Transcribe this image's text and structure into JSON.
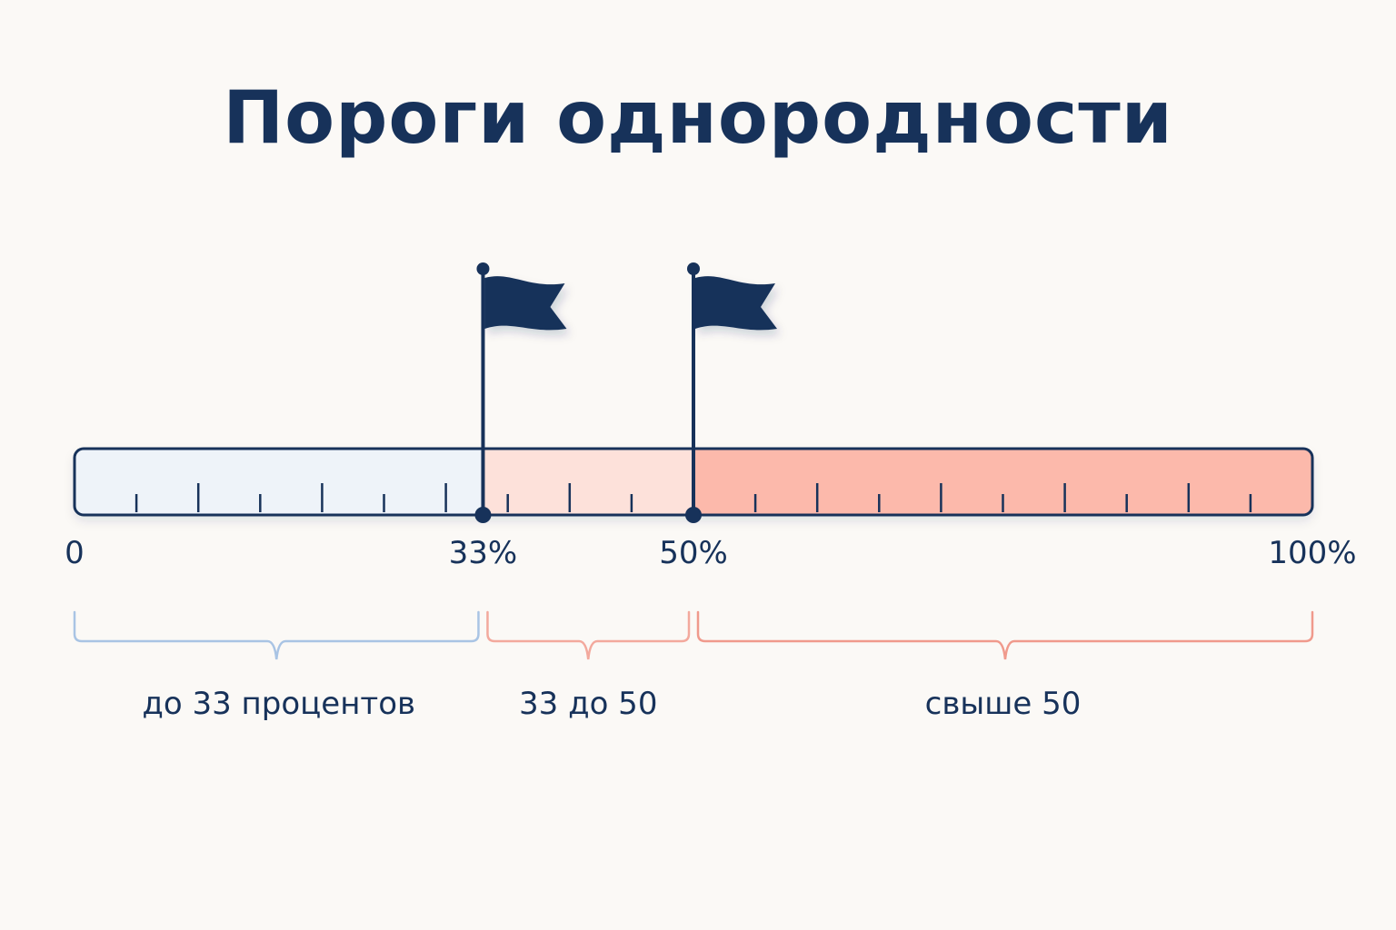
{
  "title": "Пороги однородности",
  "scale": {
    "min": 0,
    "max": 100,
    "thresholds": [
      33,
      50
    ],
    "minor_tick_step": 5
  },
  "tick_labels": [
    {
      "value": 0,
      "text": "0"
    },
    {
      "value": 33,
      "text": "33%"
    },
    {
      "value": 50,
      "text": "50%"
    },
    {
      "value": 100,
      "text": "100%"
    }
  ],
  "ranges": [
    {
      "from": 0,
      "to": 33,
      "label": "до 33 процентов",
      "fill": "#eef3f9",
      "brace_color": "#a9c4e4"
    },
    {
      "from": 33,
      "to": 50,
      "label": "33 до 50",
      "fill": "#fde1da",
      "brace_color": "#f3a99d"
    },
    {
      "from": 50,
      "to": 100,
      "label": "свыше 50",
      "fill": "#fcb9ab",
      "brace_color": "#f09a8c"
    }
  ],
  "colors": {
    "ink": "#17325a",
    "background": "#fbf9f6"
  },
  "flag_icon": "flag-icon"
}
